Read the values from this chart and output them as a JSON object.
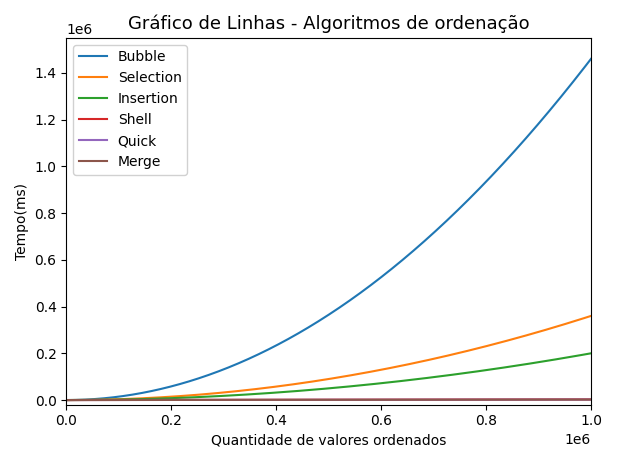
{
  "title": "Gráfico de Linhas - Algoritmos de ordenação",
  "xlabel": "Quantidade de valores ordenados",
  "ylabel": "Tempo(ms)",
  "xlim": [
    0,
    1000000
  ],
  "figsize": [
    6.17,
    4.63
  ],
  "dpi": 100,
  "series": {
    "Bubble": {
      "color": "#1f77b4",
      "type": "quadratic",
      "scale": 1.46
    },
    "Selection": {
      "color": "#ff7f0e",
      "type": "quadratic",
      "scale": 0.36
    },
    "Insertion": {
      "color": "#2ca02c",
      "type": "quadratic",
      "scale": 0.2
    },
    "Shell": {
      "color": "#d62728",
      "type": "linear",
      "scale": 0.003
    },
    "Quick": {
      "color": "#9467bd",
      "type": "linear",
      "scale": 0.002
    },
    "Merge": {
      "color": "#8c564b",
      "type": "linear",
      "scale": 0.002
    }
  }
}
